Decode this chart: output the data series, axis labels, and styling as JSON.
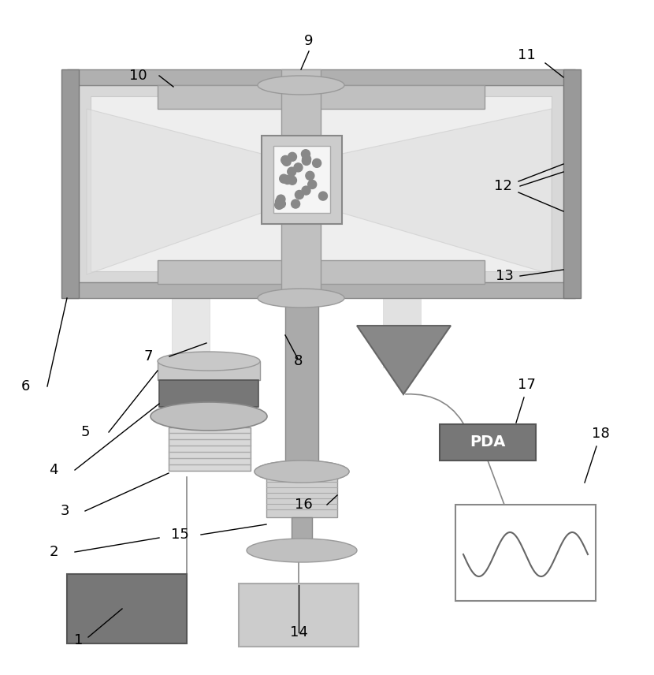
{
  "bg_color": "#ffffff",
  "gray_light": "#d0d0d0",
  "gray_mid": "#aaaaaa",
  "gray_dark": "#888888",
  "gray_darker": "#666666",
  "gray_box": "#777777",
  "white": "#ffffff",
  "black": "#000000",
  "outer_frame": "#b0b0b0",
  "inner_fill": "#d8d8d8",
  "inner_white": "#eeeeee",
  "coil_bar": "#c0c0c0",
  "column_color": "#c0c0c0",
  "chamber_outer": "#cccccc",
  "chamber_inner": "#f5f5f5",
  "atom_color": "#888888",
  "beam_color": "#e0e0e0",
  "side_plate": "#999999",
  "stack_dark": "#777777",
  "stack_light": "#c8c8c8",
  "prism_color": "#888888",
  "pda_color": "#777777",
  "laser_box": "#777777",
  "ctrl_box": "#cccccc",
  "scope_bg": "#ffffff",
  "wire_color": "#888888"
}
